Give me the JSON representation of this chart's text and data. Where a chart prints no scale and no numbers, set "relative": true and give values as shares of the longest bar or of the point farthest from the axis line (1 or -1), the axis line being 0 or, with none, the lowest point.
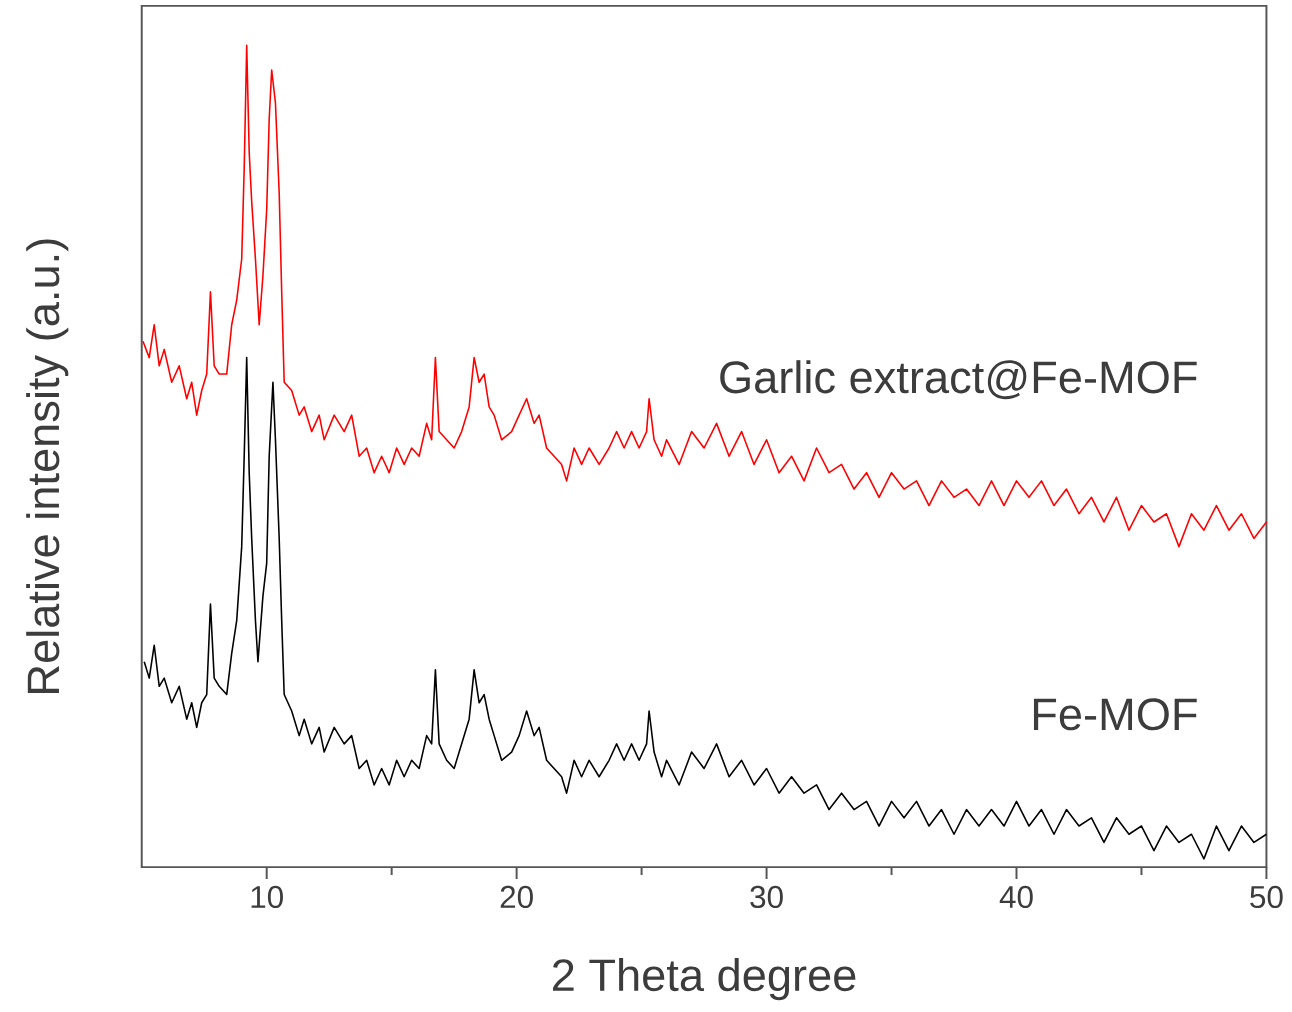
{
  "chart_data": {
    "type": "line",
    "xlabel": "2 Theta degree",
    "ylabel": "Relative intensity (a.u.)",
    "relative": true,
    "xlim": [
      5,
      50
    ],
    "xticks": [
      10,
      20,
      30,
      40,
      50
    ],
    "series": [
      {
        "name": "Garlic extract@Fe-MOF",
        "color": "#ff0000",
        "x": [
          5.05,
          5.3,
          5.5,
          5.7,
          5.9,
          6.2,
          6.5,
          6.8,
          7.0,
          7.2,
          7.4,
          7.6,
          7.75,
          7.9,
          8.1,
          8.4,
          8.6,
          8.8,
          9.0,
          9.1,
          9.2,
          9.3,
          9.4,
          9.55,
          9.7,
          9.85,
          10.0,
          10.1,
          10.2,
          10.35,
          10.5,
          10.6,
          10.7,
          11.0,
          11.3,
          11.5,
          11.8,
          12.1,
          12.3,
          12.7,
          13.1,
          13.4,
          13.7,
          14.0,
          14.3,
          14.6,
          14.9,
          15.2,
          15.5,
          15.8,
          16.1,
          16.4,
          16.6,
          16.75,
          16.9,
          17.2,
          17.5,
          17.8,
          18.1,
          18.3,
          18.5,
          18.7,
          18.9,
          19.1,
          19.4,
          19.8,
          20.1,
          20.4,
          20.7,
          20.9,
          21.2,
          21.5,
          21.8,
          22.0,
          22.3,
          22.6,
          22.9,
          23.3,
          23.7,
          24.0,
          24.3,
          24.6,
          24.9,
          25.2,
          25.3,
          25.5,
          25.8,
          26.0,
          26.5,
          27.0,
          27.5,
          28.0,
          28.5,
          29.0,
          29.5,
          30.0,
          30.5,
          31.0,
          31.5,
          32.0,
          32.5,
          33.0,
          33.5,
          34.0,
          34.5,
          35.0,
          35.5,
          36.0,
          36.5,
          37.0,
          37.5,
          38.0,
          38.5,
          39.0,
          39.5,
          40.0,
          40.5,
          41.0,
          41.5,
          42.0,
          42.5,
          43.0,
          43.5,
          44.0,
          44.5,
          45.0,
          45.5,
          46.0,
          46.5,
          47.0,
          47.5,
          48.0,
          48.5,
          49.0,
          49.5,
          50.0
        ],
        "values": [
          0.64,
          0.62,
          0.66,
          0.61,
          0.63,
          0.59,
          0.61,
          0.57,
          0.59,
          0.55,
          0.58,
          0.6,
          0.7,
          0.61,
          0.6,
          0.6,
          0.66,
          0.69,
          0.74,
          0.85,
          1.0,
          0.87,
          0.81,
          0.74,
          0.66,
          0.72,
          0.8,
          0.91,
          0.97,
          0.93,
          0.82,
          0.7,
          0.59,
          0.58,
          0.55,
          0.56,
          0.53,
          0.55,
          0.52,
          0.55,
          0.53,
          0.55,
          0.5,
          0.51,
          0.48,
          0.5,
          0.48,
          0.51,
          0.49,
          0.51,
          0.5,
          0.54,
          0.52,
          0.62,
          0.53,
          0.52,
          0.51,
          0.53,
          0.56,
          0.62,
          0.59,
          0.6,
          0.56,
          0.55,
          0.52,
          0.53,
          0.55,
          0.57,
          0.54,
          0.55,
          0.51,
          0.5,
          0.49,
          0.47,
          0.51,
          0.49,
          0.51,
          0.49,
          0.51,
          0.53,
          0.51,
          0.53,
          0.51,
          0.53,
          0.57,
          0.52,
          0.5,
          0.52,
          0.49,
          0.53,
          0.51,
          0.54,
          0.5,
          0.53,
          0.49,
          0.52,
          0.48,
          0.5,
          0.47,
          0.51,
          0.48,
          0.49,
          0.46,
          0.48,
          0.45,
          0.48,
          0.46,
          0.47,
          0.44,
          0.47,
          0.45,
          0.46,
          0.44,
          0.47,
          0.44,
          0.47,
          0.45,
          0.47,
          0.44,
          0.46,
          0.43,
          0.45,
          0.42,
          0.45,
          0.41,
          0.44,
          0.42,
          0.43,
          0.39,
          0.43,
          0.41,
          0.44,
          0.41,
          0.43,
          0.4,
          0.42
        ]
      },
      {
        "name": "Fe-MOF",
        "color": "#000000",
        "x": [
          5.1,
          5.3,
          5.5,
          5.7,
          5.9,
          6.2,
          6.5,
          6.8,
          7.0,
          7.2,
          7.4,
          7.6,
          7.75,
          7.9,
          8.1,
          8.4,
          8.6,
          8.8,
          9.0,
          9.1,
          9.2,
          9.3,
          9.4,
          9.55,
          9.65,
          9.85,
          10.0,
          10.1,
          10.25,
          10.35,
          10.5,
          10.6,
          10.7,
          11.0,
          11.3,
          11.5,
          11.8,
          12.1,
          12.3,
          12.7,
          13.1,
          13.4,
          13.7,
          14.0,
          14.3,
          14.6,
          14.9,
          15.2,
          15.5,
          15.8,
          16.1,
          16.4,
          16.6,
          16.75,
          16.9,
          17.2,
          17.5,
          17.8,
          18.1,
          18.3,
          18.5,
          18.7,
          18.9,
          19.1,
          19.4,
          19.8,
          20.1,
          20.4,
          20.7,
          20.9,
          21.2,
          21.5,
          21.8,
          22.0,
          22.3,
          22.6,
          22.9,
          23.3,
          23.7,
          24.0,
          24.3,
          24.6,
          24.9,
          25.2,
          25.3,
          25.5,
          25.8,
          26.0,
          26.5,
          27.0,
          27.5,
          28.0,
          28.5,
          29.0,
          29.5,
          30.0,
          30.5,
          31.0,
          31.5,
          32.0,
          32.5,
          33.0,
          33.5,
          34.0,
          34.5,
          35.0,
          35.5,
          36.0,
          36.5,
          37.0,
          37.5,
          38.0,
          38.5,
          39.0,
          39.5,
          40.0,
          40.5,
          41.0,
          41.5,
          42.0,
          42.5,
          43.0,
          43.5,
          44.0,
          44.5,
          45.0,
          45.5,
          46.0,
          46.5,
          47.0,
          47.5,
          48.0,
          48.5,
          49.0,
          49.5,
          50.0
        ],
        "values": [
          0.25,
          0.23,
          0.27,
          0.22,
          0.23,
          0.2,
          0.22,
          0.18,
          0.2,
          0.17,
          0.2,
          0.21,
          0.32,
          0.23,
          0.22,
          0.21,
          0.26,
          0.3,
          0.39,
          0.5,
          0.62,
          0.48,
          0.4,
          0.3,
          0.25,
          0.33,
          0.37,
          0.5,
          0.59,
          0.52,
          0.4,
          0.3,
          0.21,
          0.19,
          0.16,
          0.18,
          0.15,
          0.17,
          0.14,
          0.17,
          0.15,
          0.16,
          0.12,
          0.13,
          0.1,
          0.12,
          0.1,
          0.13,
          0.11,
          0.13,
          0.12,
          0.16,
          0.15,
          0.24,
          0.15,
          0.13,
          0.12,
          0.15,
          0.18,
          0.24,
          0.2,
          0.21,
          0.18,
          0.16,
          0.13,
          0.14,
          0.16,
          0.19,
          0.16,
          0.17,
          0.13,
          0.12,
          0.11,
          0.09,
          0.13,
          0.11,
          0.13,
          0.11,
          0.13,
          0.15,
          0.13,
          0.15,
          0.13,
          0.15,
          0.19,
          0.14,
          0.11,
          0.13,
          0.1,
          0.14,
          0.12,
          0.15,
          0.11,
          0.13,
          0.1,
          0.12,
          0.09,
          0.11,
          0.09,
          0.1,
          0.07,
          0.09,
          0.07,
          0.08,
          0.05,
          0.08,
          0.06,
          0.08,
          0.05,
          0.07,
          0.04,
          0.07,
          0.05,
          0.07,
          0.05,
          0.08,
          0.05,
          0.07,
          0.04,
          0.07,
          0.05,
          0.06,
          0.03,
          0.06,
          0.04,
          0.05,
          0.02,
          0.05,
          0.03,
          0.04,
          0.01,
          0.05,
          0.02,
          0.05,
          0.03,
          0.04
        ]
      }
    ]
  }
}
